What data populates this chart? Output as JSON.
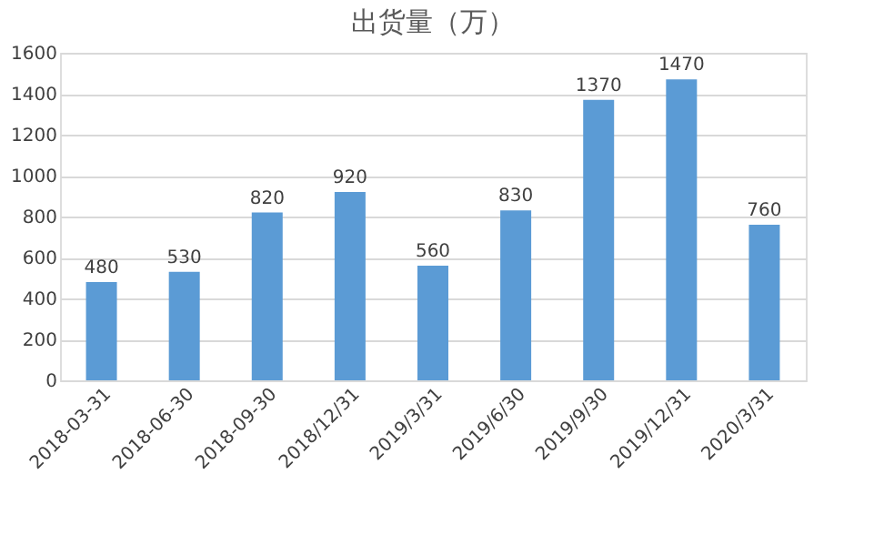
{
  "chart_data": {
    "type": "bar",
    "title": "出货量（万）",
    "categories": [
      "2018-03-31",
      "2018-06-30",
      "2018-09-30",
      "2018/12/31",
      "2019/3/31",
      "2019/6/30",
      "2019/9/30",
      "2019/12/31",
      "2020/3/31"
    ],
    "values": [
      480,
      530,
      820,
      920,
      560,
      830,
      1370,
      1470,
      760
    ],
    "color": "#5b9bd5",
    "ylim": [
      0,
      1600
    ],
    "yticks": [
      0,
      200,
      400,
      600,
      800,
      1000,
      1200,
      1400,
      1600
    ],
    "grid": "y",
    "data_labels": true
  }
}
